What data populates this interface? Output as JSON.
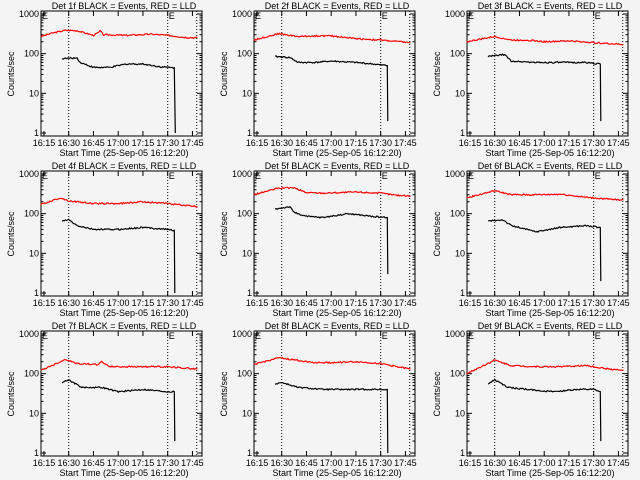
{
  "colors": {
    "events": "#000000",
    "lld": "#ff0000",
    "background": "#f4f4f4"
  },
  "common": {
    "ylabel": "Counts/sec",
    "xlabel": "Start Time (25-Sep-05 16:12:20)",
    "xticks": [
      15,
      30,
      45,
      60,
      75,
      90,
      105
    ],
    "xtick_labels": [
      "16:15",
      "16:30",
      "16:45",
      "17:00",
      "17:15",
      "17:30",
      "17:45"
    ],
    "yticks": [
      1,
      10,
      100,
      1000
    ],
    "ytick_labels": [
      "1",
      "10",
      "100",
      "1000"
    ],
    "xlim_minutes_after_16h": [
      13.2,
      110.8
    ],
    "ylim": [
      0.84,
      1190
    ],
    "yscale": "log",
    "vlines_minutes_after_16h": [
      30,
      90,
      107.6
    ],
    "event_markers": [
      {
        "label": "E",
        "x": 13.2
      },
      {
        "label": "E",
        "x": 90
      }
    ]
  },
  "chart_data": [
    {
      "type": "line",
      "title": "Det 1f BLACK = Events, RED = LLD",
      "series": [
        {
          "name": "LLD",
          "color": "red",
          "points": [
            [
              13,
              270
            ],
            [
              20,
              330
            ],
            [
              28,
              390
            ],
            [
              35,
              380
            ],
            [
              45,
              290
            ],
            [
              48,
              340
            ],
            [
              49,
              380
            ],
            [
              51,
              300
            ],
            [
              65,
              290
            ],
            [
              80,
              310
            ],
            [
              90,
              290
            ],
            [
              100,
              260
            ],
            [
              108,
              250
            ]
          ]
        },
        {
          "name": "Events",
          "color": "black",
          "points": [
            [
              26,
              75
            ],
            [
              35,
              78
            ],
            [
              37,
              60
            ],
            [
              45,
              45
            ],
            [
              55,
              45
            ],
            [
              65,
              55
            ],
            [
              75,
              55
            ],
            [
              85,
              47
            ],
            [
              94,
              44
            ],
            [
              94.3,
              7
            ],
            [
              94.6,
              1
            ]
          ]
        }
      ]
    },
    {
      "type": "line",
      "title": "Det 2f BLACK = Events, RED = LLD",
      "series": [
        {
          "name": "LLD",
          "color": "red",
          "points": [
            [
              13,
              220
            ],
            [
              28,
              320
            ],
            [
              40,
              270
            ],
            [
              50,
              280
            ],
            [
              60,
              280
            ],
            [
              75,
              240
            ],
            [
              90,
              220
            ],
            [
              108,
              190
            ]
          ]
        },
        {
          "name": "Events",
          "color": "black",
          "points": [
            [
              26,
              85
            ],
            [
              35,
              80
            ],
            [
              40,
              60
            ],
            [
              50,
              60
            ],
            [
              60,
              65
            ],
            [
              75,
              60
            ],
            [
              85,
              55
            ],
            [
              94,
              50
            ],
            [
              94.3,
              2
            ]
          ]
        }
      ]
    },
    {
      "type": "line",
      "title": "Det 3f BLACK = Events, RED = LLD",
      "series": [
        {
          "name": "LLD",
          "color": "red",
          "points": [
            [
              13,
              200
            ],
            [
              30,
              270
            ],
            [
              40,
              220
            ],
            [
              50,
              220
            ],
            [
              60,
              200
            ],
            [
              75,
              210
            ],
            [
              90,
              190
            ],
            [
              108,
              170
            ]
          ]
        },
        {
          "name": "Events",
          "color": "black",
          "points": [
            [
              26,
              85
            ],
            [
              36,
              95
            ],
            [
              40,
              65
            ],
            [
              55,
              60
            ],
            [
              70,
              60
            ],
            [
              85,
              60
            ],
            [
              94,
              55
            ],
            [
              94.3,
              2
            ]
          ]
        }
      ]
    },
    {
      "type": "line",
      "title": "Det 4f BLACK = Events, RED = LLD",
      "series": [
        {
          "name": "LLD",
          "color": "red",
          "points": [
            [
              13,
              170
            ],
            [
              25,
              250
            ],
            [
              30,
              210
            ],
            [
              45,
              180
            ],
            [
              60,
              180
            ],
            [
              75,
              200
            ],
            [
              90,
              180
            ],
            [
              108,
              150
            ]
          ]
        },
        {
          "name": "Events",
          "color": "black",
          "points": [
            [
              26,
              65
            ],
            [
              30,
              70
            ],
            [
              35,
              50
            ],
            [
              45,
              40
            ],
            [
              60,
              40
            ],
            [
              75,
              45
            ],
            [
              90,
              40
            ],
            [
              94,
              38
            ],
            [
              94.3,
              1
            ]
          ]
        }
      ]
    },
    {
      "type": "line",
      "title": "Det 5f BLACK = Events, RED = LLD",
      "series": [
        {
          "name": "LLD",
          "color": "red",
          "points": [
            [
              13,
              300
            ],
            [
              28,
              440
            ],
            [
              37,
              450
            ],
            [
              45,
              340
            ],
            [
              55,
              330
            ],
            [
              75,
              350
            ],
            [
              90,
              330
            ],
            [
              100,
              290
            ],
            [
              108,
              280
            ]
          ]
        },
        {
          "name": "Events",
          "color": "black",
          "points": [
            [
              26,
              130
            ],
            [
              35,
              150
            ],
            [
              37,
              110
            ],
            [
              45,
              85
            ],
            [
              55,
              80
            ],
            [
              70,
              100
            ],
            [
              85,
              85
            ],
            [
              94,
              80
            ],
            [
              94.3,
              3
            ]
          ]
        }
      ]
    },
    {
      "type": "line",
      "title": "Det 6f BLACK = Events, RED = LLD",
      "series": [
        {
          "name": "LLD",
          "color": "red",
          "points": [
            [
              13,
              250
            ],
            [
              30,
              380
            ],
            [
              40,
              300
            ],
            [
              55,
              300
            ],
            [
              70,
              310
            ],
            [
              85,
              260
            ],
            [
              100,
              230
            ],
            [
              108,
              220
            ]
          ]
        },
        {
          "name": "Events",
          "color": "black",
          "points": [
            [
              26,
              65
            ],
            [
              35,
              70
            ],
            [
              40,
              50
            ],
            [
              55,
              35
            ],
            [
              70,
              45
            ],
            [
              85,
              50
            ],
            [
              94,
              45
            ],
            [
              94.3,
              2
            ]
          ]
        }
      ]
    },
    {
      "type": "line",
      "title": "Det 7f BLACK = Events, RED = LLD",
      "series": [
        {
          "name": "LLD",
          "color": "red",
          "points": [
            [
              13,
              120
            ],
            [
              28,
              230
            ],
            [
              35,
              180
            ],
            [
              48,
              170
            ],
            [
              50,
              200
            ],
            [
              55,
              150
            ],
            [
              75,
              150
            ],
            [
              90,
              150
            ],
            [
              108,
              130
            ]
          ]
        },
        {
          "name": "Events",
          "color": "black",
          "points": [
            [
              26,
              60
            ],
            [
              30,
              70
            ],
            [
              38,
              45
            ],
            [
              50,
              45
            ],
            [
              60,
              35
            ],
            [
              75,
              40
            ],
            [
              90,
              35
            ],
            [
              94,
              35
            ],
            [
              94.3,
              2
            ]
          ]
        }
      ]
    },
    {
      "type": "line",
      "title": "Det 8f BLACK = Events, RED = LLD",
      "series": [
        {
          "name": "LLD",
          "color": "red",
          "points": [
            [
              13,
              170
            ],
            [
              28,
              250
            ],
            [
              35,
              230
            ],
            [
              50,
              190
            ],
            [
              60,
              190
            ],
            [
              75,
              200
            ],
            [
              90,
              180
            ],
            [
              108,
              130
            ]
          ]
        },
        {
          "name": "Events",
          "color": "black",
          "points": [
            [
              26,
              55
            ],
            [
              30,
              60
            ],
            [
              40,
              45
            ],
            [
              55,
              40
            ],
            [
              70,
              40
            ],
            [
              85,
              40
            ],
            [
              94,
              40
            ],
            [
              94.3,
              1
            ]
          ]
        }
      ]
    },
    {
      "type": "line",
      "title": "Det 9f BLACK = Events, RED = LLD",
      "series": [
        {
          "name": "LLD",
          "color": "red",
          "points": [
            [
              13,
              100
            ],
            [
              30,
              220
            ],
            [
              40,
              160
            ],
            [
              55,
              150
            ],
            [
              70,
              150
            ],
            [
              85,
              160
            ],
            [
              100,
              130
            ],
            [
              108,
              120
            ]
          ]
        },
        {
          "name": "Events",
          "color": "black",
          "points": [
            [
              26,
              55
            ],
            [
              30,
              70
            ],
            [
              38,
              45
            ],
            [
              50,
              40
            ],
            [
              65,
              35
            ],
            [
              80,
              40
            ],
            [
              90,
              40
            ],
            [
              94,
              35
            ],
            [
              94.3,
              2
            ]
          ]
        }
      ]
    }
  ]
}
